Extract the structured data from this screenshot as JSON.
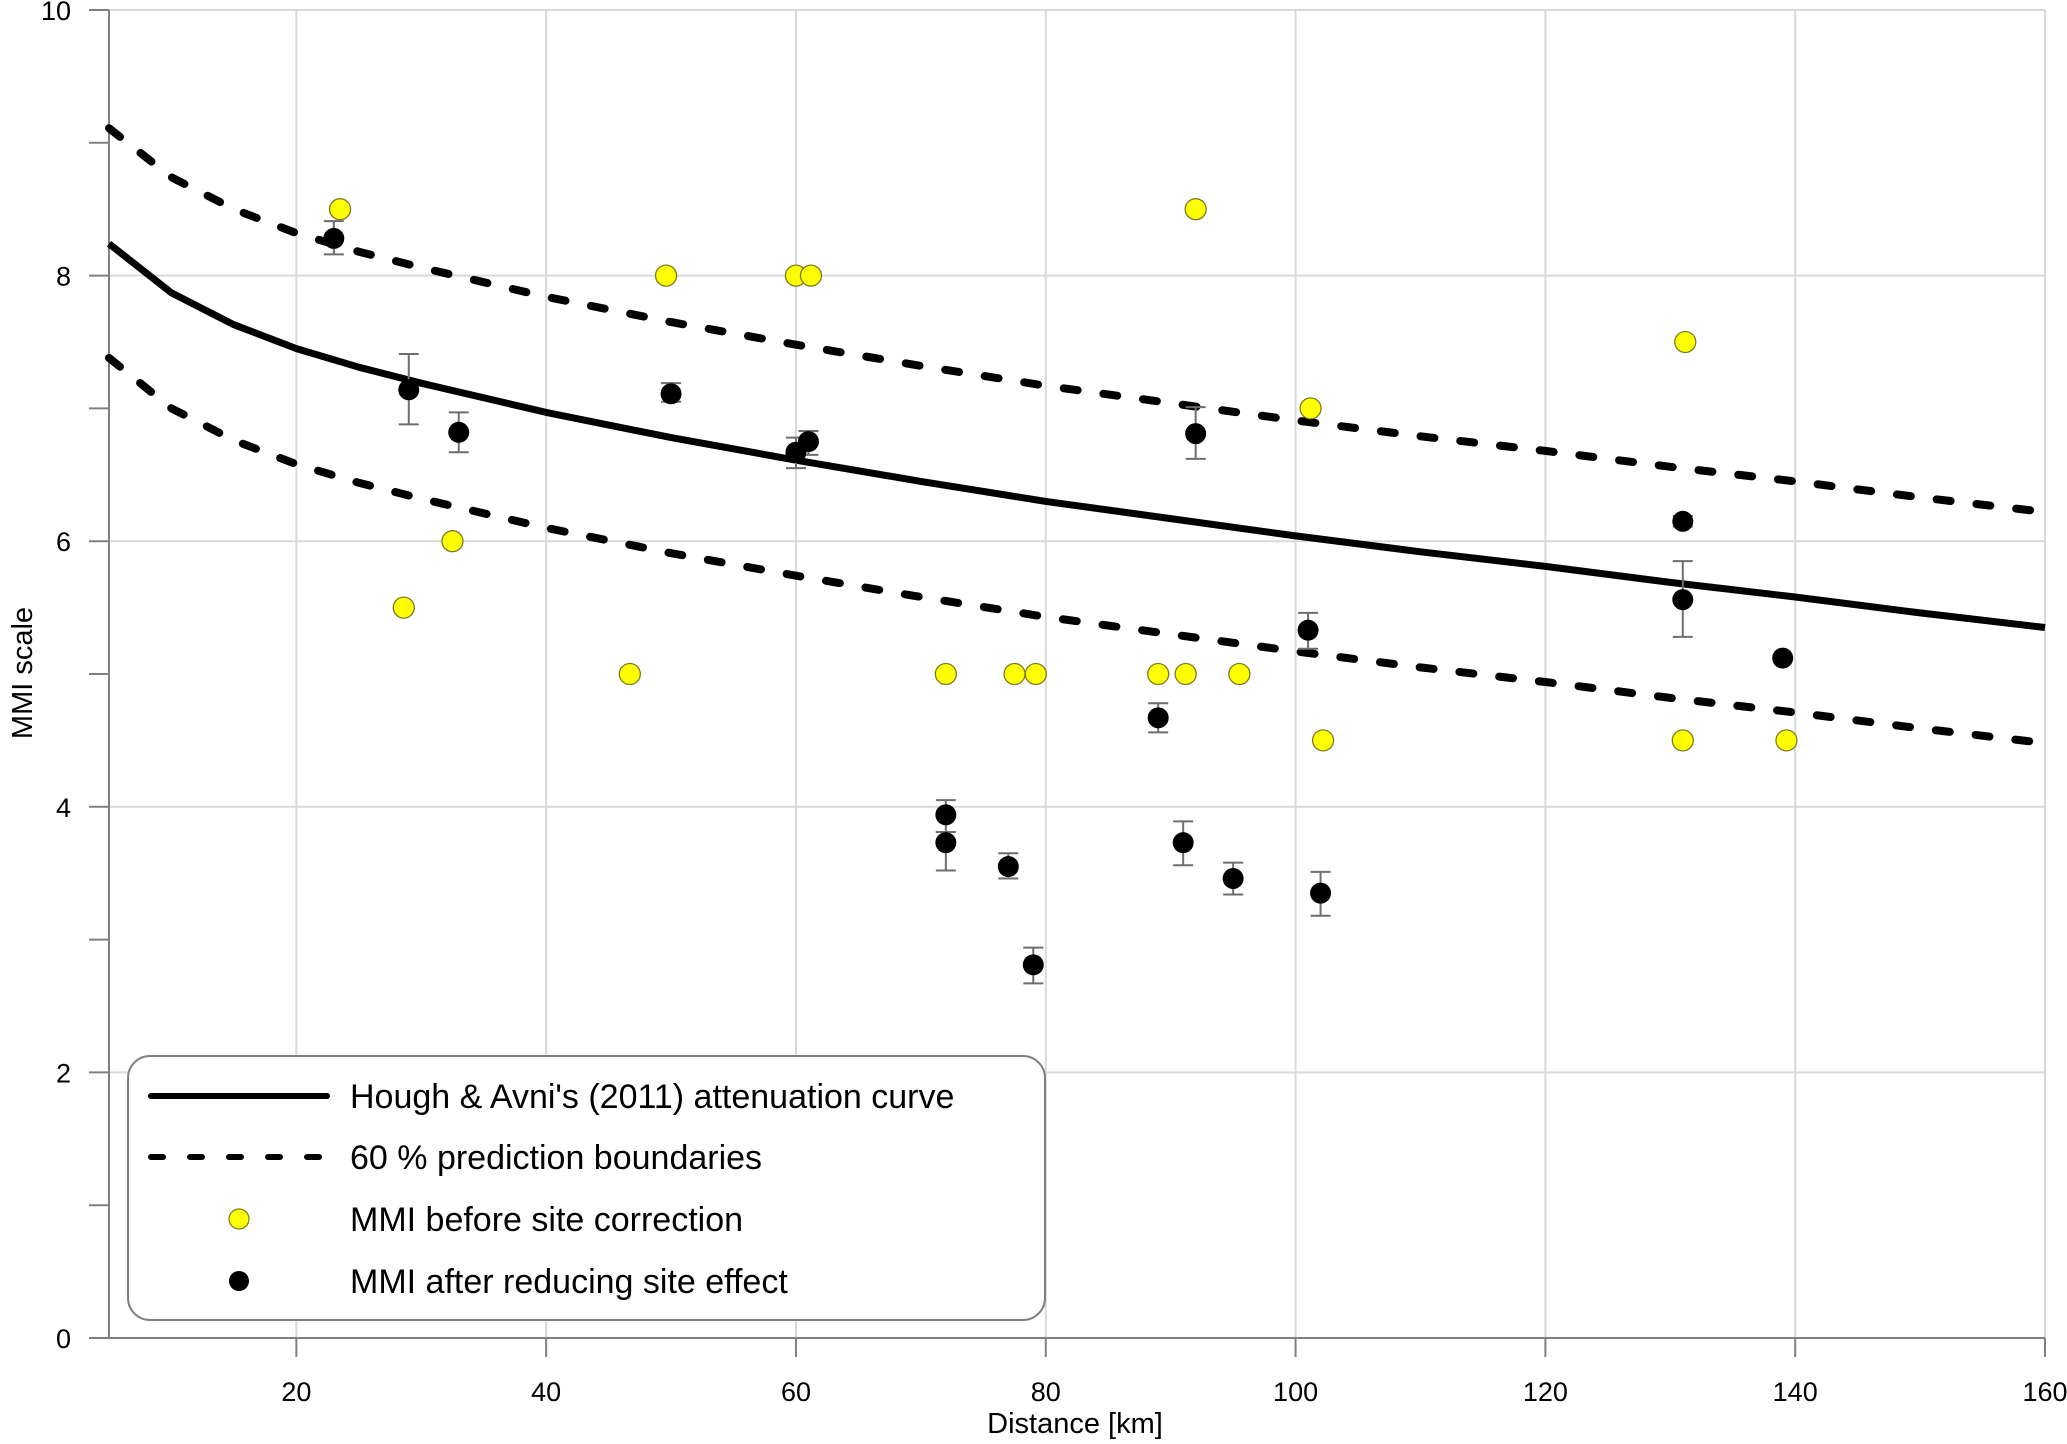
{
  "chart_data": {
    "type": "scatter",
    "title": "",
    "xlabel": "Distance [km]",
    "ylabel": "MMI scale",
    "xlim": [
      5,
      160
    ],
    "ylim": [
      0,
      10
    ],
    "x_ticks": [
      20,
      40,
      60,
      80,
      100,
      120,
      140,
      160
    ],
    "x_tick_labels": [
      "20",
      "40",
      "60",
      "80",
      "100",
      "120",
      "140",
      "160"
    ],
    "y_ticks_major": [
      0,
      2,
      4,
      6,
      8,
      10
    ],
    "y_tick_labels": [
      "0",
      "2",
      "4",
      "6",
      "8",
      "10"
    ],
    "y_ticks_minor": [
      1,
      3,
      5,
      7,
      9
    ],
    "grid": true,
    "legend_position": "bottom-left",
    "series": [
      {
        "name": "Hough & Avni's (2011) attenuation curve",
        "kind": "line",
        "style": "solid",
        "color": "#000000",
        "x": [
          5,
          10,
          15,
          20,
          25,
          30,
          40,
          50,
          60,
          70,
          80,
          90,
          100,
          110,
          120,
          130,
          140,
          150,
          160
        ],
        "y": [
          8.24,
          7.87,
          7.63,
          7.45,
          7.31,
          7.19,
          6.97,
          6.78,
          6.61,
          6.45,
          6.3,
          6.17,
          6.04,
          5.92,
          5.81,
          5.69,
          5.58,
          5.46,
          5.35
        ]
      },
      {
        "name": "60 % prediction boundaries",
        "kind": "line",
        "style": "dashed",
        "color": "#000000",
        "x": [
          5,
          10,
          15,
          20,
          25,
          30,
          40,
          50,
          60,
          70,
          80,
          90,
          100,
          110,
          120,
          130,
          140,
          150,
          160
        ],
        "y": [
          9.11,
          8.74,
          8.5,
          8.32,
          8.18,
          8.06,
          7.84,
          7.65,
          7.48,
          7.32,
          7.17,
          7.04,
          6.91,
          6.79,
          6.68,
          6.56,
          6.45,
          6.33,
          6.22
        ]
      },
      {
        "name": "60 % prediction boundaries (lower)",
        "kind": "line",
        "style": "dashed",
        "color": "#000000",
        "in_legend": false,
        "x": [
          5,
          10,
          15,
          20,
          25,
          30,
          40,
          50,
          60,
          70,
          80,
          90,
          100,
          110,
          120,
          130,
          140,
          150,
          160
        ],
        "y": [
          7.38,
          7.0,
          6.76,
          6.58,
          6.44,
          6.32,
          6.1,
          5.91,
          5.74,
          5.58,
          5.43,
          5.3,
          5.17,
          5.05,
          4.94,
          4.82,
          4.71,
          4.59,
          4.48
        ]
      },
      {
        "name": "MMI before site correction",
        "kind": "scatter",
        "color": "#ffff00",
        "points": [
          {
            "x": 23.5,
            "y": 8.5
          },
          {
            "x": 28.6,
            "y": 5.5
          },
          {
            "x": 32.5,
            "y": 6.0
          },
          {
            "x": 46.7,
            "y": 5.0
          },
          {
            "x": 49.6,
            "y": 8.0
          },
          {
            "x": 60.0,
            "y": 8.0
          },
          {
            "x": 61.2,
            "y": 8.0
          },
          {
            "x": 72.0,
            "y": 5.0
          },
          {
            "x": 77.5,
            "y": 5.0
          },
          {
            "x": 79.2,
            "y": 5.0
          },
          {
            "x": 89.0,
            "y": 5.0
          },
          {
            "x": 91.2,
            "y": 5.0
          },
          {
            "x": 92.0,
            "y": 8.5
          },
          {
            "x": 95.5,
            "y": 5.0
          },
          {
            "x": 101.2,
            "y": 7.0
          },
          {
            "x": 102.2,
            "y": 4.5
          },
          {
            "x": 131.0,
            "y": 4.5
          },
          {
            "x": 131.2,
            "y": 7.5
          },
          {
            "x": 139.3,
            "y": 4.5
          }
        ]
      },
      {
        "name": "MMI after reducing site effect",
        "kind": "scatter_errorbar",
        "color": "#000000",
        "points": [
          {
            "x": 23.0,
            "y": 8.28,
            "lo": 8.16,
            "hi": 8.41
          },
          {
            "x": 29.0,
            "y": 7.14,
            "lo": 6.88,
            "hi": 7.41
          },
          {
            "x": 33.0,
            "y": 6.82,
            "lo": 6.67,
            "hi": 6.97
          },
          {
            "x": 50.0,
            "y": 7.11,
            "lo": 7.05,
            "hi": 7.19
          },
          {
            "x": 60.0,
            "y": 6.67,
            "lo": 6.55,
            "hi": 6.78
          },
          {
            "x": 61.0,
            "y": 6.75,
            "lo": 6.65,
            "hi": 6.83
          },
          {
            "x": 72.0,
            "y": 3.94,
            "lo": 3.81,
            "hi": 4.05
          },
          {
            "x": 72.0,
            "y": 3.73,
            "lo": 3.52,
            "hi": 3.81
          },
          {
            "x": 77.0,
            "y": 3.55,
            "lo": 3.46,
            "hi": 3.65
          },
          {
            "x": 79.0,
            "y": 2.81,
            "lo": 2.67,
            "hi": 2.94
          },
          {
            "x": 89.0,
            "y": 4.67,
            "lo": 4.56,
            "hi": 4.78
          },
          {
            "x": 91.0,
            "y": 3.73,
            "lo": 3.56,
            "hi": 3.89
          },
          {
            "x": 92.0,
            "y": 6.81,
            "lo": 6.62,
            "hi": 7.01
          },
          {
            "x": 95.0,
            "y": 3.46,
            "lo": 3.34,
            "hi": 3.58
          },
          {
            "x": 101.0,
            "y": 5.33,
            "lo": 5.19,
            "hi": 5.46
          },
          {
            "x": 102.0,
            "y": 3.35,
            "lo": 3.18,
            "hi": 3.51
          },
          {
            "x": 131.0,
            "y": 6.15,
            "lo": 6.11,
            "hi": 6.19
          },
          {
            "x": 131.0,
            "y": 5.56,
            "lo": 5.28,
            "hi": 5.85
          },
          {
            "x": 139.0,
            "y": 5.12,
            "lo": null,
            "hi": null
          }
        ]
      }
    ],
    "legend": [
      {
        "label": "Hough & Avni's (2011) attenuation curve",
        "symbol": "solid-line"
      },
      {
        "label": "60 % prediction boundaries",
        "symbol": "dashed-line"
      },
      {
        "label": "MMI before site correction",
        "symbol": "yellow-circle"
      },
      {
        "label": "MMI after reducing site effect",
        "symbol": "black-circle"
      }
    ]
  }
}
